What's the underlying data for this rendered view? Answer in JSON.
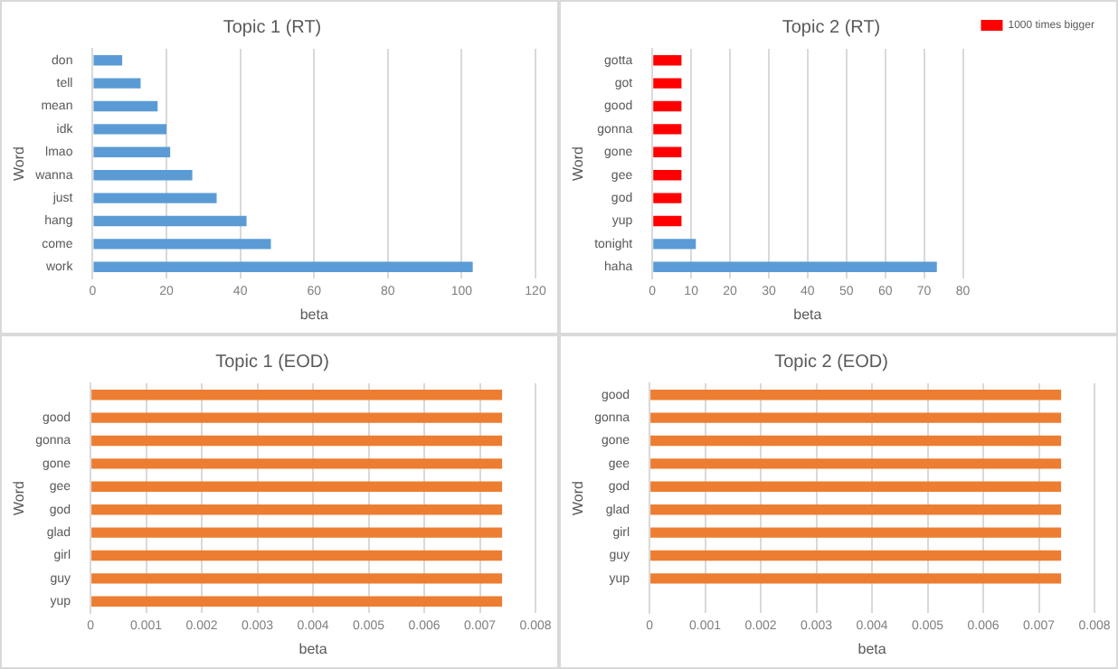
{
  "chart_data": [
    {
      "type": "bar",
      "orientation": "horizontal",
      "title": "Topic 1 (RT)",
      "xlabel": "beta",
      "ylabel": "Word",
      "categories": [
        "don",
        "tell",
        "mean",
        "idk",
        "lmao",
        "wanna",
        "just",
        "hang",
        "come",
        "work"
      ],
      "series": [
        {
          "color": "#5b9bd5",
          "values": [
            8,
            13,
            17.6,
            20,
            21,
            27,
            33.6,
            41.7,
            48.3,
            103
          ]
        }
      ],
      "xlim": [
        0,
        120
      ],
      "xticks": [
        0,
        20,
        40,
        60,
        80,
        100,
        120
      ],
      "grid": "x",
      "legend": false
    },
    {
      "type": "bar",
      "orientation": "horizontal",
      "stacked": true,
      "title": "Topic 2 (RT)",
      "xlabel": "beta",
      "ylabel": "Word",
      "categories": [
        "gotta",
        "got",
        "good",
        "gonna",
        "gone",
        "gee",
        "god",
        "yup",
        "tonight",
        "haha"
      ],
      "series": [
        {
          "color": "#5b9bd5",
          "values": [
            null,
            null,
            null,
            null,
            null,
            null,
            null,
            null,
            11.2,
            73.3
          ]
        },
        {
          "name": "1000 times bigger",
          "color": "#ff0000",
          "values": [
            7.5,
            7.5,
            7.5,
            7.5,
            7.5,
            7.5,
            7.5,
            7.5,
            null,
            null
          ]
        }
      ],
      "xlim": [
        0,
        80
      ],
      "xticks": [
        0,
        10,
        20,
        30,
        40,
        50,
        60,
        70,
        80
      ],
      "grid": "x",
      "legend": "top right"
    },
    {
      "type": "bar",
      "orientation": "horizontal",
      "title": "Topic 1 (EOD)",
      "xlabel": "beta",
      "ylabel": "Word",
      "categories": [
        null,
        "good",
        "gonna",
        "gone",
        "gee",
        "god",
        "glad",
        "girl",
        "guy",
        "yup"
      ],
      "series": [
        {
          "color": "#ed7d31",
          "values": [
            0.0074,
            0.0074,
            0.0074,
            0.0074,
            0.0074,
            0.0074,
            0.0074,
            0.0074,
            0.0074,
            0.0074
          ]
        }
      ],
      "xlim": [
        0,
        0.008
      ],
      "xticks": [
        0,
        0.001,
        0.002,
        0.003,
        0.004,
        0.005,
        0.006,
        0.007,
        0.008
      ],
      "grid": "x",
      "legend": false
    },
    {
      "type": "bar",
      "orientation": "horizontal",
      "title": "Topic 2 (EOD)",
      "xlabel": "beta",
      "ylabel": "Word",
      "categories": [
        "good",
        "gonna",
        "gone",
        "gee",
        "god",
        "glad",
        "girl",
        "guy",
        "yup",
        null
      ],
      "series": [
        {
          "color": "#ed7d31",
          "values": [
            0.0074,
            0.0074,
            0.0074,
            0.0074,
            0.0074,
            0.0074,
            0.0074,
            0.0074,
            0.0074,
            null
          ]
        }
      ],
      "xlim": [
        0,
        0.008
      ],
      "xticks": [
        0,
        0.001,
        0.002,
        0.003,
        0.004,
        0.005,
        0.006,
        0.007,
        0.008
      ],
      "grid": "x",
      "legend": false
    }
  ]
}
